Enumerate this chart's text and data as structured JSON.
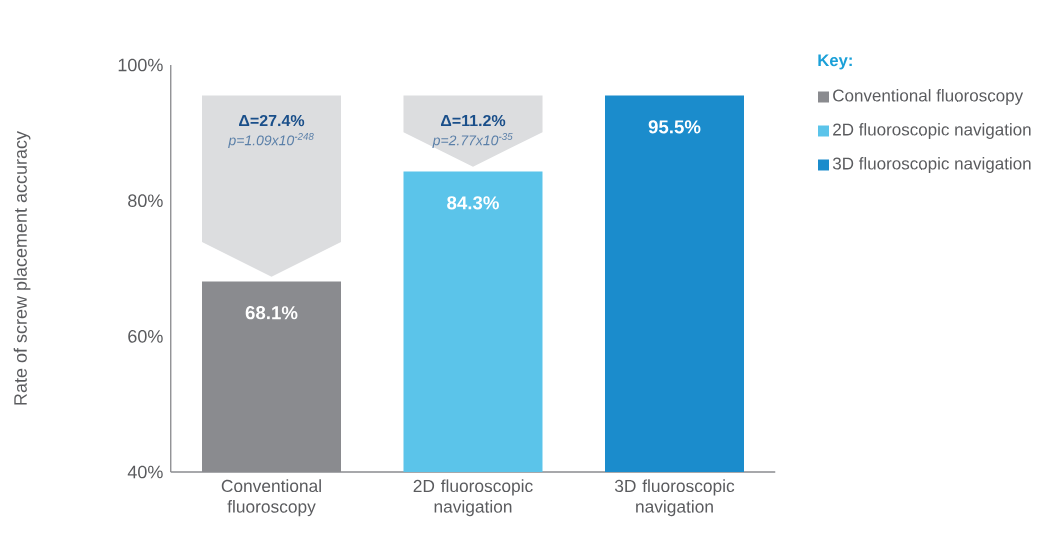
{
  "chart_data": {
    "type": "bar",
    "ylabel": "Rate of screw placement accuracy",
    "categories": [
      "Conventional fluoroscopy",
      "2D fluoroscopic navigation",
      "3D fluoroscopic navigation"
    ],
    "series": [
      {
        "name": "Conventional fluoroscopy",
        "color": "#8a8b8f",
        "values": [
          68.1,
          null,
          null
        ],
        "value_labels": [
          "68.1%",
          null,
          null
        ]
      },
      {
        "name": "2D fluoroscopic navigation",
        "color": "#5bc4ea",
        "values": [
          null,
          84.3,
          null
        ],
        "value_labels": [
          null,
          "84.3%",
          null
        ]
      },
      {
        "name": "3D fluoroscopic navigation",
        "color": "#1b8ccc",
        "values": [
          null,
          null,
          95.5
        ],
        "value_labels": [
          null,
          null,
          "95.5%"
        ]
      }
    ],
    "ylim": [
      40,
      100
    ],
    "yticks": [
      {
        "value": 40,
        "label": "40%"
      },
      {
        "value": 60,
        "label": "60%"
      },
      {
        "value": 80,
        "label": "80%"
      },
      {
        "value": 100,
        "label": "100%"
      }
    ],
    "legend": "right",
    "legend_title": "Key:",
    "grid": false,
    "annotations": [
      "Δ=27.4%",
      "p=1.09x10$^{-248}$",
      "Δ=11.2%",
      "p=2.77x10$^{-35}$"
    ]
  }
}
